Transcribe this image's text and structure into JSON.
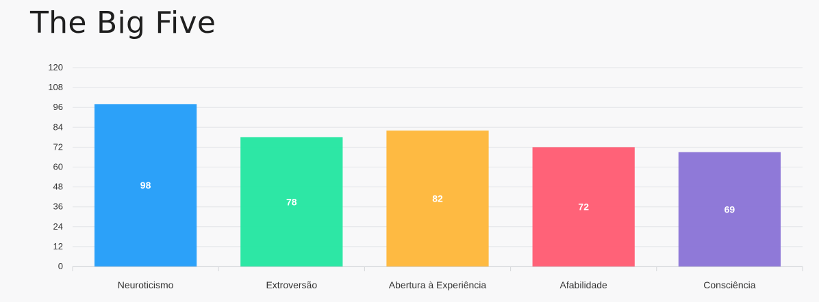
{
  "title": "The Big Five",
  "chart_data": {
    "type": "bar",
    "title": "The Big Five",
    "categories": [
      "Neuroticismo",
      "Extroversão",
      "Abertura à Experiência",
      "Afabilidade",
      "Consciência"
    ],
    "values": [
      98,
      78,
      82,
      72,
      69
    ],
    "colors": [
      "#259ef9",
      "#26e6a2",
      "#feb83c",
      "#ff5d74",
      "#8b75d7"
    ],
    "ylim": [
      0,
      120
    ],
    "yticks": [
      0,
      12,
      24,
      36,
      48,
      60,
      72,
      84,
      96,
      108,
      120
    ],
    "xlabel": "",
    "ylabel": "",
    "grid": true,
    "legend": "none",
    "data_labels": true
  }
}
